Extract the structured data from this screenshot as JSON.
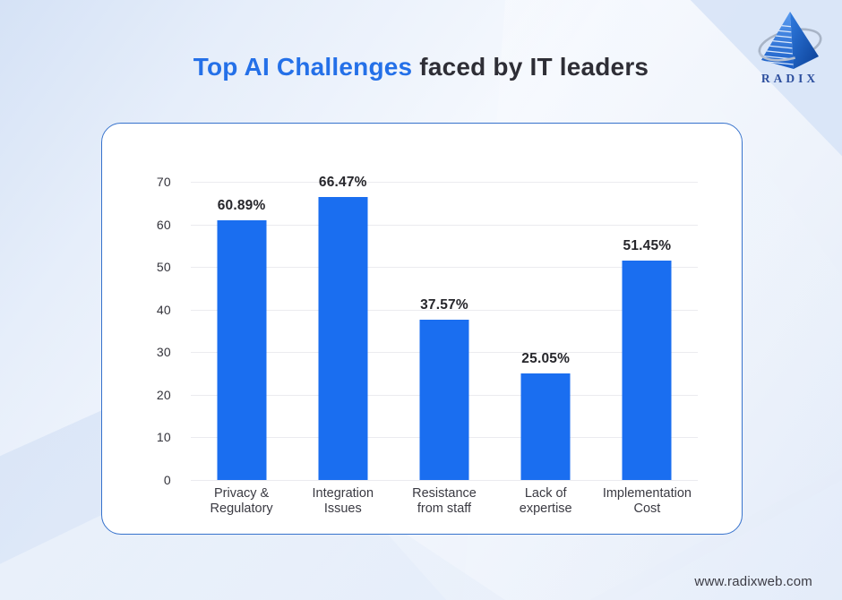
{
  "page": {
    "title_highlight": "Top AI Challenges",
    "title_rest": " faced by IT leaders",
    "website": "www.radixweb.com",
    "brand": {
      "name": "RADIX",
      "logo_icon": "radix-pyramid-logo"
    }
  },
  "colors": {
    "bar": "#1a6ef0",
    "title_accent": "#2470e8",
    "title_dark": "#2e2e36",
    "card_border": "#3672cc",
    "gridline": "#ebebef",
    "axis_text": "#33333b",
    "value_text": "#26262b",
    "cat_text": "#3a3a42",
    "website_text": "#3b3b44",
    "brand_text": "#2d4f9e"
  },
  "chart_data": {
    "type": "bar",
    "title": "Top AI Challenges faced by IT leaders",
    "categories": [
      "Privacy & Regulatory",
      "Integration Issues",
      "Resistance from staff",
      "Lack of expertise",
      "Implementation Cost"
    ],
    "category_lines": [
      [
        "Privacy &",
        "Regulatory"
      ],
      [
        "Integration",
        "Issues"
      ],
      [
        "Resistance",
        "from staff"
      ],
      [
        "Lack of",
        "expertise"
      ],
      [
        "Implementation",
        "Cost"
      ]
    ],
    "values": [
      60.89,
      66.47,
      37.57,
      25.05,
      51.45
    ],
    "value_labels": [
      "60.89%",
      "66.47%",
      "37.57%",
      "25.05%",
      "51.45%"
    ],
    "xlabel": "",
    "ylabel": "",
    "ylim": [
      0,
      70
    ],
    "yticks": [
      0,
      10,
      20,
      30,
      40,
      50,
      60,
      70
    ],
    "grid": "horizontal",
    "legend": "none",
    "bar_color": "#1a6ef0"
  }
}
